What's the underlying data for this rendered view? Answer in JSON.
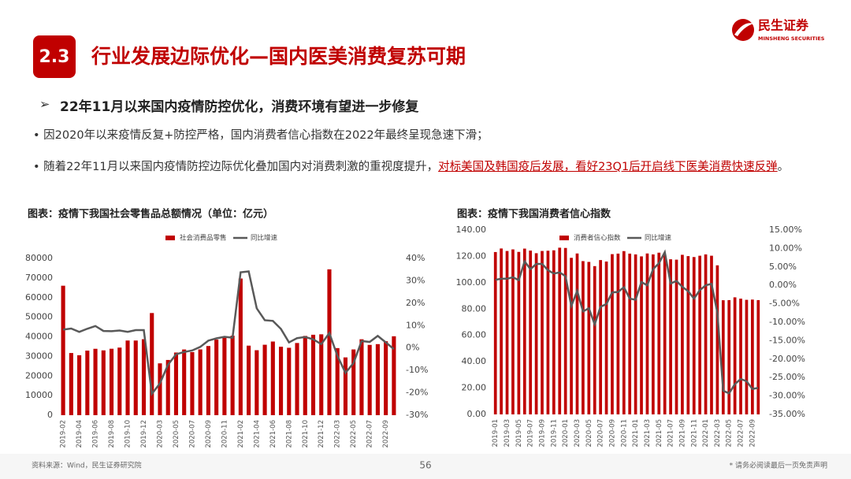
{
  "header": {
    "section": "2.3",
    "title": "行业发展边际优化—国内医美消费复苏可期",
    "logo_cn": "民生证券",
    "logo_en": "MINSHENG SECURITIES"
  },
  "heading": "22年11月以来国内疫情防控优化，消费环境有望进一步修复",
  "bullets": [
    {
      "text": "因2020年以来疫情反复+防控严格，国内消费者信心指数在2022年最终呈现急速下滑；"
    },
    {
      "text": "随着22年11月以来国内疫情防控边际优化叠加国内对消费刺激的重视度提升，",
      "highlight": "对标美国及韩国疫后发展，看好23Q1后开启线下医美消费快速反弹",
      "end": "。"
    }
  ],
  "chart_data": [
    {
      "type": "combo",
      "title": "图表：疫情下我国社会零售品总额情况（单位：亿元）",
      "legend": "top",
      "grid": false,
      "categories": [
        "2019-02",
        null,
        "2019-04",
        null,
        "2019-06",
        null,
        "2019-08",
        null,
        "2019-10",
        null,
        "2019-12",
        null,
        "2020-03",
        null,
        "2020-05",
        null,
        "2020-07",
        null,
        "2020-09",
        null,
        "2020-11",
        null,
        "2021-02",
        null,
        "2021-04",
        null,
        "2021-06",
        null,
        "2021-08",
        null,
        "2021-10",
        null,
        "2021-12",
        null,
        "2022-03",
        null,
        "2022-05",
        null,
        "2022-07",
        null,
        "2022-09",
        null
      ],
      "series": [
        {
          "name": "社会消费品零售",
          "type": "bar",
          "color": "#c00000",
          "values": [
            66064,
            31726,
            30586,
            32956,
            33878,
            33073,
            33896,
            34495,
            38104,
            38094,
            38777,
            52130,
            26450,
            28178,
            31973,
            33526,
            32203,
            33571,
            35295,
            38576,
            39514,
            40566,
            69737,
            35484,
            33153,
            35945,
            37586,
            34925,
            34395,
            36833,
            40454,
            41043,
            41269,
            74426,
            34233,
            29483,
            33547,
            38742,
            35870,
            36258,
            37745,
            40271
          ]
        },
        {
          "name": "同比增速",
          "type": "line",
          "axis": "y2",
          "color": "#595959",
          "values": [
            8.2,
            8.7,
            7.2,
            8.6,
            9.8,
            7.6,
            7.5,
            7.8,
            7.2,
            8.0,
            8.0,
            -20.5,
            -15.8,
            -7.5,
            -2.8,
            -1.8,
            -1.1,
            0.5,
            3.3,
            4.3,
            5.0,
            4.6,
            33.8,
            34.2,
            17.7,
            12.4,
            12.1,
            8.5,
            2.5,
            4.4,
            4.9,
            3.9,
            1.7,
            6.7,
            -3.5,
            -11.1,
            -6.7,
            3.1,
            2.7,
            5.4,
            2.5,
            -0.5
          ]
        }
      ],
      "ylim": [
        0,
        80000
      ],
      "yticks": [
        0,
        10000,
        20000,
        30000,
        40000,
        50000,
        60000,
        70000,
        80000
      ],
      "y2lim": [
        -30,
        40
      ],
      "y2ticks": [
        {
          "value": -30,
          "label": "-30%"
        },
        {
          "value": -20,
          "label": "-20%"
        },
        {
          "value": -10,
          "label": "-10%"
        },
        {
          "value": 0,
          "label": "0%"
        },
        {
          "value": 10,
          "label": "10%"
        },
        {
          "value": 20,
          "label": "20%"
        },
        {
          "value": 30,
          "label": "30%"
        },
        {
          "value": 40,
          "label": "40%"
        }
      ]
    },
    {
      "type": "combo",
      "title": "图表：疫情下我国消费者信心指数",
      "legend": "top",
      "grid": false,
      "categories": [
        "2019-01",
        null,
        "2019-03",
        null,
        "2019-05",
        null,
        "2019-07",
        null,
        "2019-09",
        null,
        "2019-11",
        null,
        "2020-01",
        null,
        "2020-03",
        null,
        "2020-05",
        null,
        "2020-07",
        null,
        "2020-09",
        null,
        "2020-11",
        null,
        "2021-01",
        null,
        "2021-03",
        null,
        "2021-05",
        null,
        "2021-07",
        null,
        "2021-09",
        null,
        "2021-11",
        null,
        "2022-01",
        null,
        "2022-03",
        null,
        "2022-05",
        null,
        "2022-07",
        null,
        "2022-09",
        null
      ],
      "series": [
        {
          "name": "消费者信心指数",
          "type": "bar",
          "color": "#c00000",
          "values": [
            123.3,
            126.0,
            124.1,
            125.3,
            123.4,
            125.9,
            124.4,
            122.4,
            124.1,
            124.3,
            124.6,
            126.6,
            126.4,
            118.9,
            122.2,
            116.4,
            115.8,
            112.6,
            117.2,
            116.1,
            121.7,
            122.1,
            124.0,
            122.1,
            121.5,
            120.0,
            122.2,
            121.5,
            122.8,
            121.4,
            117.8,
            117.5,
            121.2,
            120.2,
            119.5,
            120.5,
            121.5,
            120.5,
            113.2,
            86.7,
            86.8,
            88.9,
            87.9,
            87.0,
            87.2,
            86.8
          ]
        },
        {
          "name": "同比增速",
          "type": "line",
          "axis": "y2",
          "color": "#595959",
          "values": [
            1.5,
            1.8,
            1.8,
            2.2,
            1.4,
            6.5,
            4.4,
            5.8,
            5.8,
            4.1,
            3.2,
            3.5,
            2.5,
            -5.6,
            -1.5,
            -7.1,
            -6.2,
            -10.6,
            -5.8,
            -5.1,
            -1.9,
            -1.8,
            -0.5,
            -3.6,
            -3.9,
            0.9,
            0.0,
            4.4,
            6.0,
            9.0,
            0.5,
            1.2,
            -0.4,
            -1.6,
            -3.6,
            -1.3,
            0.0,
            0.4,
            -7.4,
            -28.6,
            -29.3,
            -26.8,
            -25.4,
            -26.0,
            -28.1,
            -27.8
          ]
        }
      ],
      "ylim": [
        0,
        140
      ],
      "yticks": [
        {
          "value": 0,
          "label": "0.00"
        },
        {
          "value": 20,
          "label": "20.00"
        },
        {
          "value": 40,
          "label": "40.00"
        },
        {
          "value": 60,
          "label": "60.00"
        },
        {
          "value": 80,
          "label": "80.00"
        },
        {
          "value": 100,
          "label": "100.00"
        },
        {
          "value": 120,
          "label": "120.00"
        },
        {
          "value": 140,
          "label": "140.00"
        }
      ],
      "y2lim": [
        -35,
        15
      ],
      "y2ticks": [
        {
          "value": -35,
          "label": "-35.00%"
        },
        {
          "value": -30,
          "label": "-30.00%"
        },
        {
          "value": -25,
          "label": "-25.00%"
        },
        {
          "value": -20,
          "label": "-20.00%"
        },
        {
          "value": -15,
          "label": "-15.00%"
        },
        {
          "value": -10,
          "label": "-10.00%"
        },
        {
          "value": -5,
          "label": "-5.00%"
        },
        {
          "value": 0,
          "label": "0.00%"
        },
        {
          "value": 5,
          "label": "5.00%"
        },
        {
          "value": 10,
          "label": "10.00%"
        },
        {
          "value": 15,
          "label": "15.00%"
        }
      ]
    }
  ],
  "footer": {
    "source": "资料来源：Wind，民生证券研究院",
    "page": "56",
    "disclaimer": "* 请务必阅读最后一页免责声明"
  }
}
